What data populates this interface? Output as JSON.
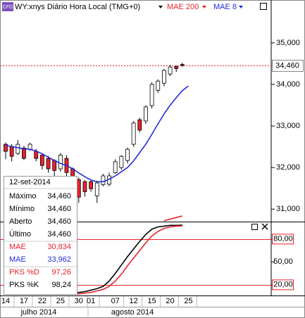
{
  "chart_data": [
    {
      "type": "candlestick",
      "badge": "CFD",
      "title": "WY:xnys Diário Hora Local (TMG+0)",
      "categories": [
        "14",
        null,
        null,
        "17",
        null,
        null,
        "22",
        null,
        null,
        "25",
        null,
        null,
        "30",
        null,
        "01",
        null,
        null,
        null,
        "07",
        null,
        null,
        "12",
        null,
        null,
        "15",
        null,
        null,
        "20",
        null,
        null,
        "25"
      ],
      "months": [
        "julho 2014",
        "agosto 2014"
      ],
      "open": [
        32560,
        32510,
        32340,
        32470,
        32440,
        32390,
        32300,
        32220,
        32170,
        31970,
        32220,
        31970,
        31710,
        31660,
        31660,
        31320,
        31590,
        31600,
        31880,
        32000,
        32170,
        32560,
        33150,
        33120,
        33490,
        33860,
        34030,
        34250,
        34430,
        34480,
        null
      ],
      "high": [
        32600,
        32560,
        32660,
        32520,
        32600,
        32450,
        32350,
        32280,
        32200,
        32350,
        32300,
        32000,
        31760,
        31700,
        31700,
        31680,
        31850,
        31880,
        32200,
        32300,
        32480,
        33120,
        33200,
        33500,
        34050,
        34120,
        34370,
        34470,
        34460,
        34520,
        null
      ],
      "low": [
        32200,
        32150,
        32300,
        32180,
        32400,
        32150,
        31950,
        31880,
        31800,
        31900,
        31800,
        31600,
        31150,
        31300,
        31420,
        31150,
        31550,
        31550,
        31850,
        31950,
        32100,
        32500,
        32850,
        33050,
        33420,
        33800,
        33950,
        34200,
        34300,
        34420,
        null
      ],
      "close": [
        32390,
        32270,
        32560,
        32220,
        32560,
        32220,
        32050,
        31970,
        31930,
        32300,
        31880,
        31710,
        31290,
        31420,
        31490,
        31630,
        31800,
        31800,
        32140,
        32270,
        32440,
        33070,
        32900,
        33460,
        34000,
        34080,
        34340,
        34420,
        34380,
        34460,
        null
      ],
      "up_color": "#ffffff",
      "down_color": "#e8212b",
      "series": [
        {
          "name": "MAE 200",
          "color": "#e8212b",
          "values": [
            null,
            null,
            null,
            null,
            null,
            null,
            null,
            null,
            null,
            null,
            null,
            null,
            null,
            null,
            null,
            null,
            null,
            null,
            null,
            null,
            null,
            null,
            null,
            null,
            null,
            null,
            30720,
            30760,
            30800,
            30834,
            null
          ]
        },
        {
          "name": "MAE 8",
          "color": "#1f2ed6",
          "values": [
            32540,
            32500,
            32480,
            32450,
            32440,
            32400,
            32330,
            32250,
            32170,
            32100,
            32050,
            31970,
            31870,
            31780,
            31700,
            31660,
            31660,
            31720,
            31800,
            31900,
            32000,
            32160,
            32360,
            32560,
            32800,
            33050,
            33290,
            33500,
            33680,
            33850,
            33962
          ]
        }
      ],
      "ylim": [
        30700,
        36030
      ],
      "yticks": [
        {
          "value": 31000,
          "label": "31,000"
        },
        {
          "value": 32000,
          "label": "32,000"
        },
        {
          "value": 33000,
          "label": "33,000"
        },
        {
          "value": 34000,
          "label": "34,000"
        },
        {
          "value": 35000,
          "label": "35,000"
        }
      ],
      "last_price": 34460,
      "last_price_label": "34,460"
    },
    {
      "type": "line",
      "series": [
        {
          "name": "PKS %K",
          "color": "#000000",
          "values": [
            null,
            null,
            null,
            null,
            null,
            null,
            null,
            null,
            null,
            10,
            10,
            10,
            10,
            11,
            13,
            15,
            18,
            25,
            35,
            46,
            57,
            67,
            77,
            86,
            93,
            96,
            97,
            98,
            98,
            98.24,
            null
          ]
        },
        {
          "name": "PKS %D",
          "color": "#e8212b",
          "values": [
            null,
            null,
            null,
            null,
            null,
            null,
            null,
            null,
            null,
            8,
            8,
            8,
            8,
            9,
            10,
            12,
            14,
            18,
            25,
            34,
            45,
            55,
            65,
            75,
            84,
            90,
            94,
            96,
            97,
            97.26,
            null
          ]
        }
      ],
      "ylim": [
        6,
        102
      ],
      "yticks": [
        {
          "value": 20,
          "label": "20,00"
        },
        {
          "value": 50,
          "label": "50,00"
        },
        {
          "value": 80,
          "label": "80,00"
        }
      ],
      "levels": [
        20,
        80
      ],
      "level_color": "#e8212b"
    }
  ],
  "tooltip": {
    "date": "12-set-2014",
    "rows": [
      [
        "Máximo",
        "34,460"
      ],
      [
        "Mínimo",
        "34,460"
      ],
      [
        "Aberto",
        "34,460"
      ],
      [
        "Último",
        "34,460"
      ],
      [
        "MAE",
        "30,834"
      ],
      [
        "MAE",
        "33,962"
      ],
      [
        "PKS %D",
        "97,26"
      ],
      [
        "PKS %K",
        "98,24"
      ]
    ]
  }
}
